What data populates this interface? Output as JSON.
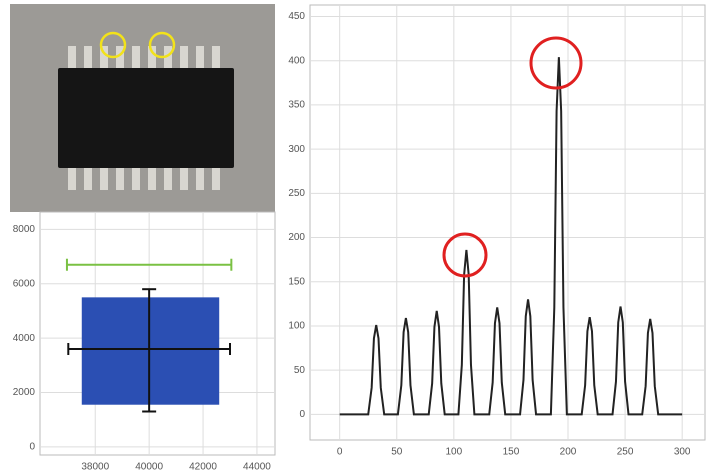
{
  "chart_data": [
    {
      "type": "line",
      "x": [
        0,
        25,
        28,
        30,
        32,
        34,
        36,
        39,
        51,
        54,
        56,
        58,
        60,
        62,
        65,
        78,
        81,
        83,
        85,
        87,
        89,
        92,
        104,
        107,
        109,
        111,
        113,
        115,
        118,
        131,
        134,
        136,
        138,
        140,
        142,
        145,
        158,
        161,
        163,
        165,
        167,
        169,
        172,
        185,
        188,
        190,
        192,
        194,
        196,
        199,
        212,
        215,
        217,
        219,
        221,
        223,
        226,
        239,
        242,
        244,
        246,
        248,
        250,
        253,
        265,
        268,
        270,
        272,
        274,
        276,
        279,
        300
      ],
      "series": [
        {
          "color": "#222222",
          "values": [
            0,
            0,
            30,
            86,
            101,
            86,
            30,
            0,
            0,
            33,
            93,
            109,
            93,
            33,
            0,
            0,
            35,
            99,
            117,
            99,
            35,
            0,
            0,
            56,
            158,
            186,
            158,
            56,
            0,
            0,
            36,
            103,
            121,
            103,
            36,
            0,
            0,
            39,
            111,
            130,
            111,
            39,
            0,
            0,
            121,
            343,
            404,
            343,
            121,
            0,
            0,
            33,
            94,
            110,
            94,
            33,
            0,
            0,
            37,
            104,
            122,
            104,
            37,
            0,
            0,
            32,
            92,
            108,
            92,
            32,
            0,
            0
          ]
        }
      ],
      "xlim": [
        -26,
        320
      ],
      "ylim": [
        -29,
        463
      ],
      "xticks": [
        0,
        50,
        100,
        150,
        200,
        250,
        300
      ],
      "yticks": [
        0,
        50,
        100,
        150,
        200,
        250,
        300,
        350,
        400,
        450
      ],
      "grid": true
    },
    {
      "type": "errorbar",
      "region": {
        "x": [
          37500,
          42600
        ],
        "y": [
          1550,
          5500
        ],
        "color": "#2b4fb3"
      },
      "center": {
        "x": 40000,
        "y": 3600
      },
      "xerr": [
        3000,
        3000
      ],
      "yerr": [
        2300,
        2200
      ],
      "color": "#111111",
      "hline": {
        "y": 6700,
        "x": [
          36950,
          43050
        ],
        "color": "#7ac143"
      },
      "xlim": [
        35950,
        44670
      ],
      "ylim": [
        -300,
        8640
      ],
      "xticks": [
        38000,
        40000,
        42000,
        44000
      ],
      "yticks": [
        0,
        2000,
        4000,
        6000,
        8000
      ],
      "grid": true
    }
  ]
}
